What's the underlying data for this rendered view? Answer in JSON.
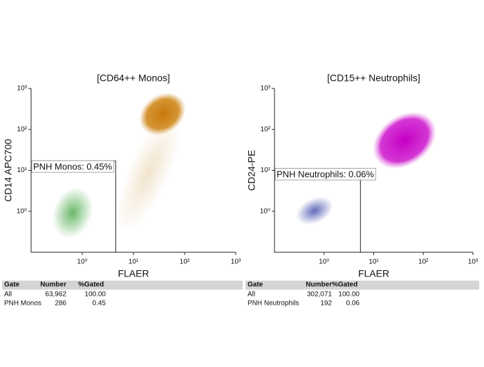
{
  "chart_data": [
    {
      "type": "scatter",
      "title": "[CD64++ Monos]",
      "x_label": "FLAER",
      "y_label": "CD14 APC700",
      "xscale": "log",
      "yscale": "log",
      "xlim": [
        0.1,
        1000
      ],
      "ylim": [
        0.1,
        1000
      ],
      "xticks": [
        {
          "value": 1,
          "label": "10⁰"
        },
        {
          "value": 10,
          "label": "10¹"
        },
        {
          "value": 100,
          "label": "10²"
        },
        {
          "value": 1000,
          "label": "10³"
        }
      ],
      "yticks": [
        {
          "value": 1,
          "label": "10⁰"
        },
        {
          "value": 10,
          "label": "10¹"
        },
        {
          "value": 100,
          "label": "10²"
        },
        {
          "value": 1000,
          "label": "10³"
        }
      ],
      "gate": {
        "label": "PNH Monos: 0.45%",
        "xlim": [
          0.1,
          4.5
        ],
        "ylim": [
          0.1,
          17
        ]
      },
      "stats": {
        "columns": [
          "Gate",
          "Number",
          "%Gated"
        ],
        "rows": [
          [
            "All",
            "63,962",
            "100.00"
          ],
          [
            "PNH Monos",
            "286",
            "0.45"
          ]
        ]
      }
    },
    {
      "type": "scatter",
      "title": "[CD15++ Neutrophils]",
      "x_label": "FLAER",
      "y_label": "CD24-PE",
      "xscale": "log",
      "yscale": "log",
      "xlim": [
        0.1,
        1000
      ],
      "ylim": [
        0.1,
        1000
      ],
      "xticks": [
        {
          "value": 1,
          "label": "10⁰"
        },
        {
          "value": 10,
          "label": "10¹"
        },
        {
          "value": 100,
          "label": "10²"
        },
        {
          "value": 1000,
          "label": "10³"
        }
      ],
      "yticks": [
        {
          "value": 1,
          "label": "10⁰"
        },
        {
          "value": 10,
          "label": "10¹"
        },
        {
          "value": 100,
          "label": "10²"
        },
        {
          "value": 1000,
          "label": "10³"
        }
      ],
      "gate": {
        "label": "PNH Neutrophils: 0.06%",
        "xlim": [
          0.1,
          5.4
        ],
        "ylim": [
          0.1,
          11
        ]
      },
      "stats": {
        "columns": [
          "Gate",
          "Number",
          "%Gated"
        ],
        "rows": [
          [
            "All",
            "302,071",
            "100.00"
          ],
          [
            "PNH Neutrophils",
            "192",
            "0.06"
          ]
        ]
      }
    }
  ]
}
